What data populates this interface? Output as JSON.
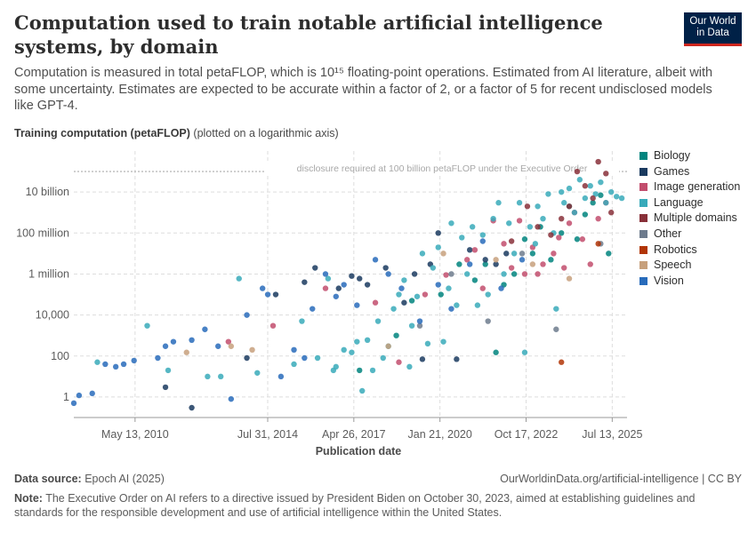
{
  "title": "Computation used to train notable artificial intelligence systems, by domain",
  "subtitle": "Computation is measured in total petaFLOP, which is 10¹⁵ floating-point operations. Estimated from AI literature, albeit with some uncertainty. Estimates are expected to be accurate within a factor of 2, or a factor of 5 for recent undisclosed models like GPT-4.",
  "logo": {
    "line1": "Our World",
    "line2": "in Data"
  },
  "y_axis": {
    "label_bold": "Training computation (petaFLOP)",
    "label_note": "(plotted on a logarithmic axis)"
  },
  "x_axis": {
    "label": "Publication date"
  },
  "footer": {
    "source_label": "Data source:",
    "source_value": "Epoch AI (2025)",
    "url": "OurWorldinData.org/artificial-intelligence | CC BY",
    "note_label": "Note:",
    "note_text": "The Executive Order on AI refers to a directive issued by President Biden on October 30, 2023, aimed at establishing guidelines and standards for the responsible development and use of artificial intelligence within the United States."
  },
  "colors": {
    "grid": "#dddddd",
    "tick_text": "#5b5b5b"
  },
  "chart_data": {
    "type": "scatter",
    "x_scale": "time",
    "y_scale": "log",
    "xlabel": "Publication date",
    "ylabel": "Training computation (petaFLOP)",
    "xlim": [
      "2008-06-01",
      "2026-01-01"
    ],
    "ylim": [
      0.1,
      1000000000000.0
    ],
    "grid": true,
    "legend_position": "right",
    "x_ticks": [
      {
        "date": "2010-05-13",
        "label": "May 13, 2010"
      },
      {
        "date": "2014-07-31",
        "label": "Jul 31, 2014"
      },
      {
        "date": "2017-04-26",
        "label": "Apr 26, 2017"
      },
      {
        "date": "2020-01-21",
        "label": "Jan 21, 2020"
      },
      {
        "date": "2022-10-17",
        "label": "Oct 17, 2022"
      },
      {
        "date": "2025-07-13",
        "label": "Jul 13, 2025"
      }
    ],
    "y_ticks": [
      {
        "value": 1,
        "label": "1"
      },
      {
        "value": 100,
        "label": "100"
      },
      {
        "value": 10000,
        "label": "10,000"
      },
      {
        "value": 1000000,
        "label": "1 million"
      },
      {
        "value": 100000000,
        "label": "100 million"
      },
      {
        "value": 10000000000,
        "label": "10 billion"
      }
    ],
    "annotations": [
      {
        "type": "hline",
        "y": 100000000000,
        "text": "disclosure required at 100 billion petaFLOP under the Executive Order"
      }
    ],
    "series": [
      {
        "name": "Biology",
        "color": "#00847e",
        "points": [
          {
            "x": "2017-07-01",
            "y": 20
          },
          {
            "x": "2018-09-01",
            "y": 1000
          },
          {
            "x": "2019-03-01",
            "y": 50000
          },
          {
            "x": "2020-02-01",
            "y": 100000
          },
          {
            "x": "2020-09-01",
            "y": 3000000
          },
          {
            "x": "2021-03-01",
            "y": 500000
          },
          {
            "x": "2021-07-01",
            "y": 3000000
          },
          {
            "x": "2021-11-01",
            "y": 150
          },
          {
            "x": "2022-02-01",
            "y": 300000
          },
          {
            "x": "2022-06-01",
            "y": 1000000
          },
          {
            "x": "2022-10-01",
            "y": 50000000
          },
          {
            "x": "2023-01-01",
            "y": 10000000
          },
          {
            "x": "2023-04-01",
            "y": 200000000
          },
          {
            "x": "2023-08-01",
            "y": 5000000
          },
          {
            "x": "2023-12-01",
            "y": 100000000
          },
          {
            "x": "2024-03-01",
            "y": 2000000000
          },
          {
            "x": "2024-06-01",
            "y": 50000000
          },
          {
            "x": "2024-09-01",
            "y": 800000000
          },
          {
            "x": "2024-12-01",
            "y": 3000000000
          },
          {
            "x": "2025-03-01",
            "y": 7000000000
          },
          {
            "x": "2025-06-01",
            "y": 10000000
          }
        ]
      },
      {
        "name": "Games",
        "color": "#1a3a5f",
        "points": [
          {
            "x": "2011-05-01",
            "y": 3
          },
          {
            "x": "2012-03-01",
            "y": 0.3
          },
          {
            "x": "2013-12-01",
            "y": 80
          },
          {
            "x": "2014-11-01",
            "y": 100000
          },
          {
            "x": "2015-10-01",
            "y": 400000
          },
          {
            "x": "2016-02-01",
            "y": 2000000
          },
          {
            "x": "2016-11-01",
            "y": 200000
          },
          {
            "x": "2017-04-01",
            "y": 800000
          },
          {
            "x": "2017-07-01",
            "y": 600000
          },
          {
            "x": "2017-10-01",
            "y": 300000
          },
          {
            "x": "2018-05-01",
            "y": 2000000
          },
          {
            "x": "2018-12-01",
            "y": 40000
          },
          {
            "x": "2019-04-01",
            "y": 1000000
          },
          {
            "x": "2019-07-01",
            "y": 70
          },
          {
            "x": "2019-10-01",
            "y": 3000000
          },
          {
            "x": "2020-01-01",
            "y": 100000000
          },
          {
            "x": "2020-08-01",
            "y": 70
          },
          {
            "x": "2021-01-01",
            "y": 15000000
          },
          {
            "x": "2021-07-01",
            "y": 5000000
          },
          {
            "x": "2021-11-01",
            "y": 3000000
          },
          {
            "x": "2022-03-01",
            "y": 10000000
          }
        ]
      },
      {
        "name": "Image generation",
        "color": "#c24d6d",
        "points": [
          {
            "x": "2013-05-01",
            "y": 500
          },
          {
            "x": "2014-10-01",
            "y": 3000
          },
          {
            "x": "2016-06-01",
            "y": 200000
          },
          {
            "x": "2018-01-01",
            "y": 40000
          },
          {
            "x": "2018-10-01",
            "y": 50
          },
          {
            "x": "2019-08-01",
            "y": 100000
          },
          {
            "x": "2020-04-01",
            "y": 900000
          },
          {
            "x": "2020-12-01",
            "y": 5000000
          },
          {
            "x": "2021-03-01",
            "y": 15000000
          },
          {
            "x": "2021-06-01",
            "y": 200000
          },
          {
            "x": "2021-10-01",
            "y": 400000000
          },
          {
            "x": "2022-02-01",
            "y": 30000000
          },
          {
            "x": "2022-05-01",
            "y": 2000000
          },
          {
            "x": "2022-08-01",
            "y": 400000000
          },
          {
            "x": "2022-10-01",
            "y": 1000000
          },
          {
            "x": "2023-01-01",
            "y": 20000000
          },
          {
            "x": "2023-03-01",
            "y": 1000000
          },
          {
            "x": "2023-05-01",
            "y": 3000000
          },
          {
            "x": "2023-09-01",
            "y": 10000000
          },
          {
            "x": "2023-11-01",
            "y": 60000000
          },
          {
            "x": "2024-01-01",
            "y": 2000000
          },
          {
            "x": "2024-03-01",
            "y": 300000000
          },
          {
            "x": "2024-05-01",
            "y": 1000000000
          },
          {
            "x": "2024-08-01",
            "y": 50000000
          },
          {
            "x": "2024-11-01",
            "y": 3000000
          },
          {
            "x": "2025-02-01",
            "y": 500000000
          },
          {
            "x": "2025-05-01",
            "y": 3000000000
          }
        ]
      },
      {
        "name": "Language",
        "color": "#38aaba",
        "points": [
          {
            "x": "2009-03-01",
            "y": 50
          },
          {
            "x": "2010-10-01",
            "y": 3000
          },
          {
            "x": "2011-06-01",
            "y": 20
          },
          {
            "x": "2012-09-01",
            "y": 10
          },
          {
            "x": "2013-02-01",
            "y": 10
          },
          {
            "x": "2013-09-01",
            "y": 600000
          },
          {
            "x": "2014-04-01",
            "y": 15
          },
          {
            "x": "2015-06-01",
            "y": 40
          },
          {
            "x": "2015-09-01",
            "y": 5000
          },
          {
            "x": "2016-03-01",
            "y": 80
          },
          {
            "x": "2016-07-01",
            "y": 600000
          },
          {
            "x": "2016-09-01",
            "y": 20
          },
          {
            "x": "2016-10-01",
            "y": 30
          },
          {
            "x": "2017-01-01",
            "y": 200
          },
          {
            "x": "2017-04-01",
            "y": 150
          },
          {
            "x": "2017-06-01",
            "y": 500
          },
          {
            "x": "2017-08-01",
            "y": 2
          },
          {
            "x": "2017-10-01",
            "y": 600
          },
          {
            "x": "2017-12-01",
            "y": 20
          },
          {
            "x": "2018-02-01",
            "y": 5000
          },
          {
            "x": "2018-04-01",
            "y": 80
          },
          {
            "x": "2018-06-01",
            "y": 300
          },
          {
            "x": "2018-08-01",
            "y": 20000
          },
          {
            "x": "2018-10-01",
            "y": 100000
          },
          {
            "x": "2018-12-01",
            "y": 500000
          },
          {
            "x": "2019-02-01",
            "y": 30
          },
          {
            "x": "2019-03-01",
            "y": 3000
          },
          {
            "x": "2019-05-01",
            "y": 80000
          },
          {
            "x": "2019-07-01",
            "y": 10000000
          },
          {
            "x": "2019-09-01",
            "y": 400
          },
          {
            "x": "2019-11-01",
            "y": 2000000
          },
          {
            "x": "2020-01-01",
            "y": 20000000
          },
          {
            "x": "2020-03-01",
            "y": 500
          },
          {
            "x": "2020-05-01",
            "y": 200000
          },
          {
            "x": "2020-06-01",
            "y": 300000000
          },
          {
            "x": "2020-08-01",
            "y": 30000
          },
          {
            "x": "2020-10-01",
            "y": 60000000
          },
          {
            "x": "2020-12-01",
            "y": 1000000
          },
          {
            "x": "2021-02-01",
            "y": 200000000
          },
          {
            "x": "2021-04-01",
            "y": 30000
          },
          {
            "x": "2021-06-01",
            "y": 80000000
          },
          {
            "x": "2021-08-01",
            "y": 100000
          },
          {
            "x": "2021-10-01",
            "y": 500000000
          },
          {
            "x": "2021-12-01",
            "y": 3000000000
          },
          {
            "x": "2022-02-01",
            "y": 1000000
          },
          {
            "x": "2022-04-01",
            "y": 300000000
          },
          {
            "x": "2022-06-01",
            "y": 10000000
          },
          {
            "x": "2022-08-01",
            "y": 3000000000
          },
          {
            "x": "2022-10-01",
            "y": 150
          },
          {
            "x": "2022-12-01",
            "y": 200000000
          },
          {
            "x": "2023-02-01",
            "y": 30000000
          },
          {
            "x": "2023-03-01",
            "y": 2000000000
          },
          {
            "x": "2023-05-01",
            "y": 500000000
          },
          {
            "x": "2023-07-01",
            "y": 8000000000
          },
          {
            "x": "2023-09-01",
            "y": 100000000
          },
          {
            "x": "2023-10-01",
            "y": 20000
          },
          {
            "x": "2023-12-01",
            "y": 10000000000
          },
          {
            "x": "2024-01-01",
            "y": 3000000000
          },
          {
            "x": "2024-03-01",
            "y": 15000000000
          },
          {
            "x": "2024-05-01",
            "y": 1000000000
          },
          {
            "x": "2024-07-01",
            "y": 40000000000
          },
          {
            "x": "2024-09-01",
            "y": 5000000000
          },
          {
            "x": "2024-11-01",
            "y": 20000000000
          },
          {
            "x": "2025-01-01",
            "y": 8000000000
          },
          {
            "x": "2025-03-01",
            "y": 30000000000
          },
          {
            "x": "2025-05-01",
            "y": 3000000000
          },
          {
            "x": "2025-07-01",
            "y": 10000000000
          },
          {
            "x": "2025-09-01",
            "y": 6000000000
          },
          {
            "x": "2025-11-01",
            "y": 5000000000
          }
        ]
      },
      {
        "name": "Multiple domains",
        "color": "#883039",
        "points": [
          {
            "x": "2022-05-01",
            "y": 40000000
          },
          {
            "x": "2022-11-01",
            "y": 2000000000
          },
          {
            "x": "2023-03-01",
            "y": 200000000
          },
          {
            "x": "2023-08-01",
            "y": 80000000
          },
          {
            "x": "2023-12-01",
            "y": 500000000
          },
          {
            "x": "2024-03-01",
            "y": 2000000000
          },
          {
            "x": "2024-06-01",
            "y": 100000000000
          },
          {
            "x": "2024-09-01",
            "y": 20000000000
          },
          {
            "x": "2024-12-01",
            "y": 5000000000
          },
          {
            "x": "2025-02-01",
            "y": 300000000000
          },
          {
            "x": "2025-05-01",
            "y": 80000000000
          },
          {
            "x": "2025-07-01",
            "y": 1000000000
          }
        ]
      },
      {
        "name": "Other",
        "color": "#6d7b8d",
        "points": [
          {
            "x": "2019-06-01",
            "y": 3000
          },
          {
            "x": "2020-06-01",
            "y": 1000000
          },
          {
            "x": "2021-08-01",
            "y": 5000
          },
          {
            "x": "2022-09-01",
            "y": 10000000
          },
          {
            "x": "2023-10-01",
            "y": 2000
          },
          {
            "x": "2025-03-01",
            "y": 30000000
          }
        ]
      },
      {
        "name": "Robotics",
        "color": "#b13507",
        "points": [
          {
            "x": "2023-12-01",
            "y": 50
          },
          {
            "x": "2025-02-01",
            "y": 30000000
          }
        ]
      },
      {
        "name": "Speech",
        "color": "#c7a07c",
        "points": [
          {
            "x": "2012-01-01",
            "y": 150
          },
          {
            "x": "2013-06-01",
            "y": 300
          },
          {
            "x": "2014-02-01",
            "y": 200
          },
          {
            "x": "2018-06-01",
            "y": 300
          },
          {
            "x": "2020-03-01",
            "y": 10000000
          },
          {
            "x": "2021-11-01",
            "y": 5000000
          },
          {
            "x": "2023-01-01",
            "y": 3000000
          },
          {
            "x": "2024-03-01",
            "y": 600000
          }
        ]
      },
      {
        "name": "Vision",
        "color": "#286bbb",
        "points": [
          {
            "x": "2008-06-01",
            "y": 0.5
          },
          {
            "x": "2008-08-01",
            "y": 1.2
          },
          {
            "x": "2009-01-01",
            "y": 1.5
          },
          {
            "x": "2009-06-01",
            "y": 40
          },
          {
            "x": "2009-10-01",
            "y": 30
          },
          {
            "x": "2010-01-01",
            "y": 40
          },
          {
            "x": "2010-05-01",
            "y": 60
          },
          {
            "x": "2011-02-01",
            "y": 80
          },
          {
            "x": "2011-05-01",
            "y": 300
          },
          {
            "x": "2011-08-01",
            "y": 500
          },
          {
            "x": "2012-03-01",
            "y": 600
          },
          {
            "x": "2012-08-01",
            "y": 2000
          },
          {
            "x": "2013-01-01",
            "y": 300
          },
          {
            "x": "2013-06-01",
            "y": 0.8
          },
          {
            "x": "2013-12-01",
            "y": 10000
          },
          {
            "x": "2014-06-01",
            "y": 200000
          },
          {
            "x": "2014-08-01",
            "y": 100000
          },
          {
            "x": "2015-01-01",
            "y": 10
          },
          {
            "x": "2015-06-01",
            "y": 200
          },
          {
            "x": "2015-10-01",
            "y": 80
          },
          {
            "x": "2016-01-01",
            "y": 20000
          },
          {
            "x": "2016-06-01",
            "y": 1000000
          },
          {
            "x": "2016-10-01",
            "y": 80000
          },
          {
            "x": "2017-01-01",
            "y": 300000
          },
          {
            "x": "2017-06-01",
            "y": 30000
          },
          {
            "x": "2018-01-01",
            "y": 5000000
          },
          {
            "x": "2018-06-01",
            "y": 1000000
          },
          {
            "x": "2018-11-01",
            "y": 200000
          },
          {
            "x": "2019-06-01",
            "y": 5000
          },
          {
            "x": "2020-01-01",
            "y": 300000
          },
          {
            "x": "2020-06-01",
            "y": 20000
          },
          {
            "x": "2021-01-01",
            "y": 3000000
          },
          {
            "x": "2021-06-01",
            "y": 40000000
          },
          {
            "x": "2022-01-01",
            "y": 200000
          },
          {
            "x": "2022-09-01",
            "y": 5000000
          }
        ]
      }
    ]
  }
}
